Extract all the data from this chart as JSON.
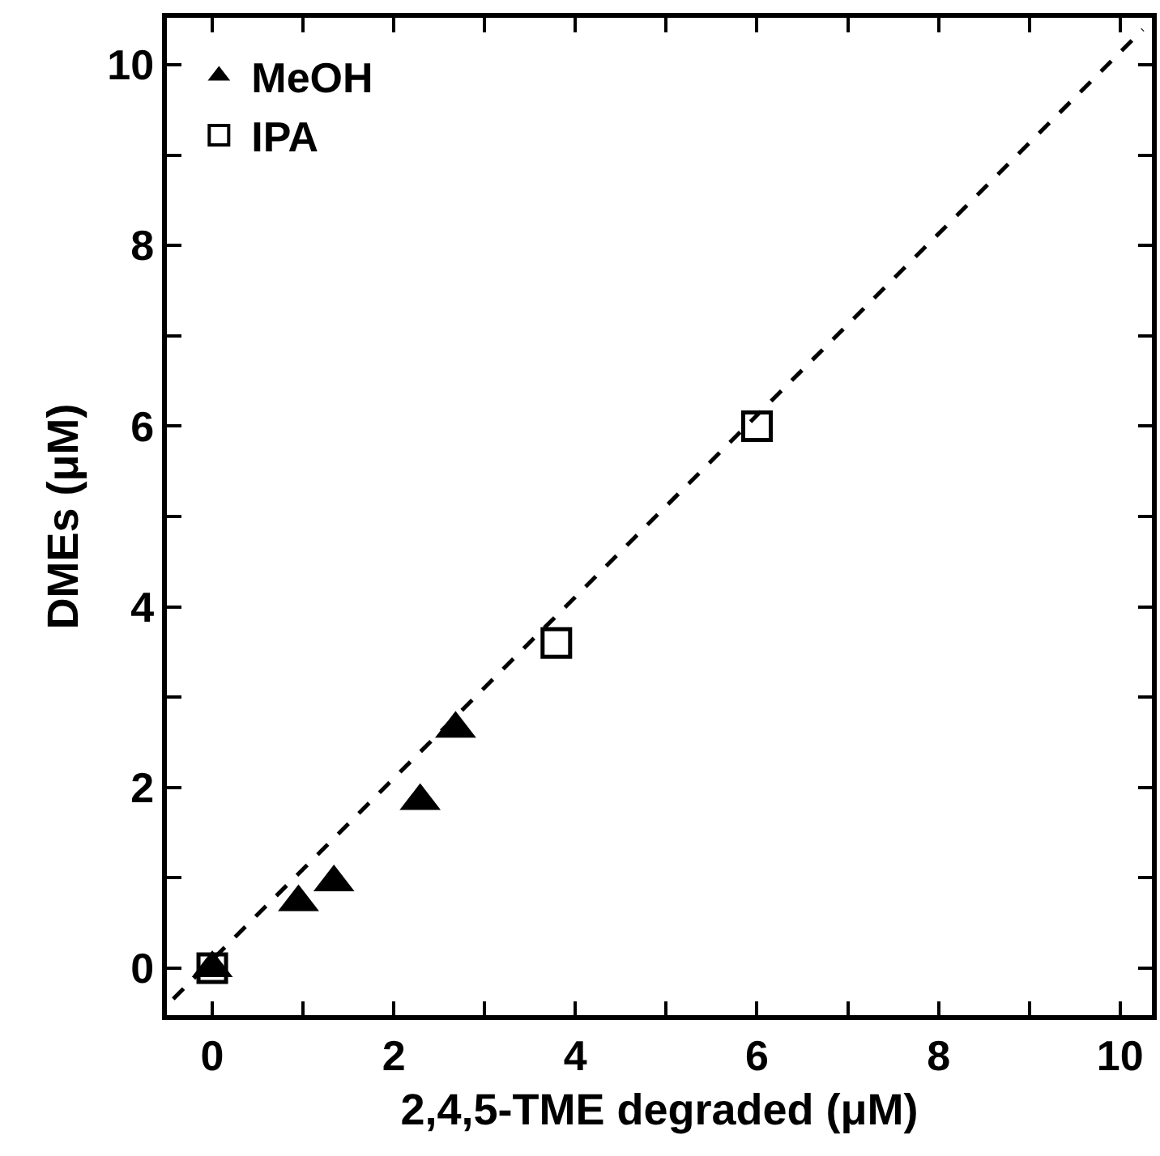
{
  "chart_data": {
    "type": "scatter",
    "xlabel": "2,4,5-TME degraded (μM)",
    "ylabel": "DMEs (μM)",
    "xlim": [
      -0.5,
      10.35
    ],
    "ylim": [
      -0.52,
      10.52
    ],
    "xticks": [
      0,
      {
        "value": 1,
        "label": null
      },
      2,
      {
        "value": 3,
        "label": null
      },
      4,
      {
        "value": 5,
        "label": null
      },
      6,
      {
        "value": 7,
        "label": null
      },
      8,
      {
        "value": 9,
        "label": null
      },
      10
    ],
    "yticks": [
      0,
      {
        "value": 1,
        "label": null
      },
      2,
      {
        "value": 3,
        "label": null
      },
      4,
      {
        "value": 5,
        "label": null
      },
      6,
      {
        "value": 7,
        "label": null
      },
      8,
      {
        "value": 9,
        "label": null
      },
      10
    ],
    "series": [
      {
        "name": "MeOH",
        "color": "#000000",
        "marker": "triangle",
        "x": [
          0.95,
          1.34,
          2.29,
          2.68,
          0
        ],
        "values": [
          0.73,
          0.95,
          1.85,
          2.65,
          0
        ]
      },
      {
        "name": "IPA",
        "color": "#000000",
        "marker": "square",
        "x": [
          3.79,
          6.0,
          0
        ],
        "values": [
          3.6,
          6.0,
          0
        ]
      },
      {
        "type": "line",
        "color": "#000000",
        "line_style": "dashed",
        "marker": "none",
        "x": [
          -0.43,
          10.25
        ],
        "values": [
          -0.34,
          10.39
        ]
      }
    ],
    "legend": "top left",
    "grid": false
  }
}
